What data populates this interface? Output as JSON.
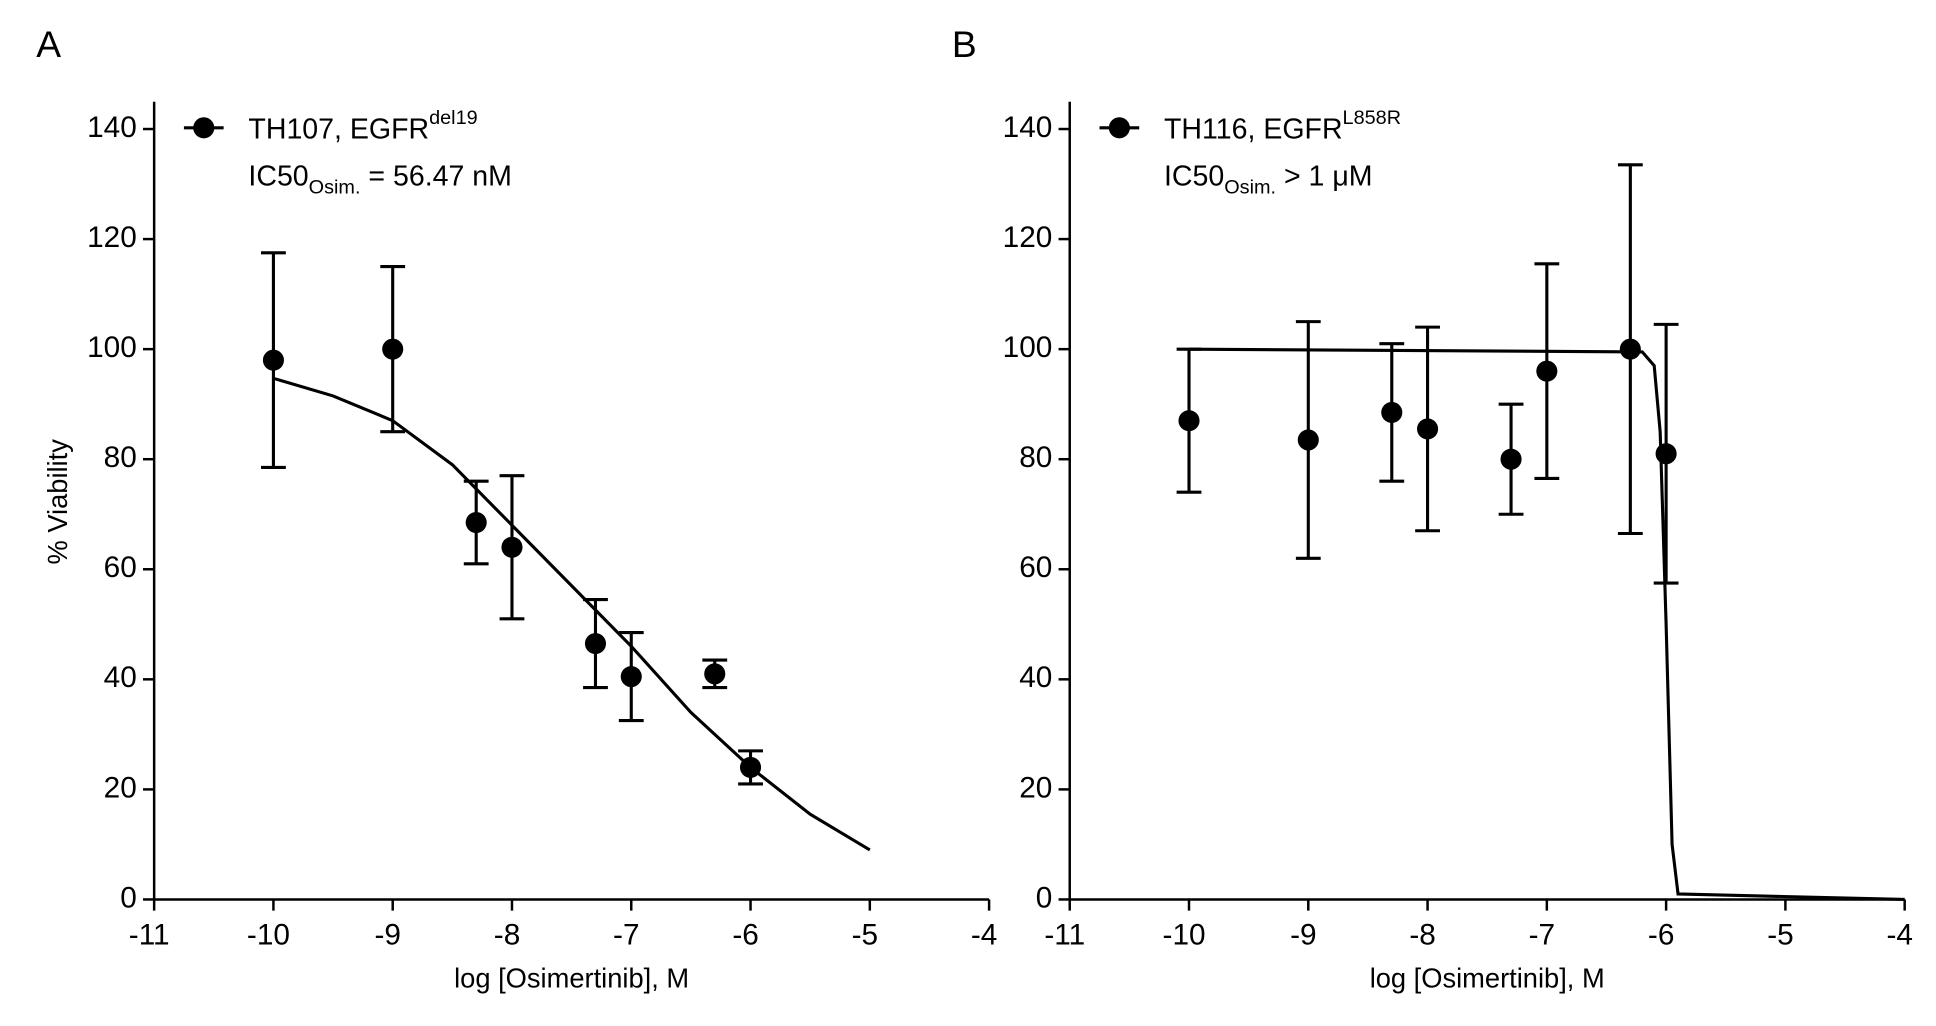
{
  "chart_data": [
    {
      "type": "scatter",
      "panel": "A",
      "xlabel": "log [Osimertinib], M",
      "ylabel": "% Viability",
      "xlim": [
        -11,
        -4
      ],
      "ylim": [
        0,
        140
      ],
      "xticks": [
        -11,
        -10,
        -9,
        -8,
        -7,
        -6,
        -5,
        -4
      ],
      "yticks": [
        0,
        20,
        40,
        60,
        80,
        100,
        120,
        140
      ],
      "series": [
        {
          "name": "TH107, EGFR",
          "name_sup": "del19",
          "color": "#000000",
          "x": [
            -10,
            -9,
            -8.3,
            -8,
            -7.3,
            -7,
            -6.3,
            -6
          ],
          "values": [
            98,
            100,
            68.5,
            64,
            46.5,
            40.5,
            41,
            24
          ],
          "errors": [
            19.5,
            15,
            7.5,
            13,
            8,
            8,
            2.5,
            3
          ]
        }
      ],
      "fit": {
        "x": [
          -10,
          -9.5,
          -9,
          -8.5,
          -8,
          -7.5,
          -7,
          -6.5,
          -6,
          -5.5,
          -5
        ],
        "y": [
          94.7,
          91.5,
          87,
          79,
          68,
          57,
          46,
          34,
          24,
          15.5,
          9
        ]
      },
      "annotation": {
        "main": "IC50",
        "sub": "Osim.",
        "rest": " = 56.47 nM"
      }
    },
    {
      "type": "scatter",
      "panel": "B",
      "xlabel": "log [Osimertinib], M",
      "xlim": [
        -11,
        -4
      ],
      "ylim": [
        0,
        140
      ],
      "xticks": [
        -11,
        -10,
        -9,
        -8,
        -7,
        -6,
        -5,
        -4
      ],
      "yticks": [
        0,
        20,
        40,
        60,
        80,
        100,
        120,
        140
      ],
      "series": [
        {
          "name": "TH116, EGFR",
          "name_sup": "L858R",
          "color": "#000000",
          "x": [
            -10,
            -9,
            -8.3,
            -8,
            -7.3,
            -7,
            -6.3,
            -6
          ],
          "values": [
            87,
            83.5,
            88.5,
            85.5,
            80,
            96,
            100,
            81
          ],
          "errors": [
            13,
            21.5,
            12.5,
            18.5,
            10,
            19.5,
            33.5,
            23.5
          ]
        }
      ],
      "fit": {
        "x": [
          -10,
          -6.2,
          -6.1,
          -6.05,
          -6,
          -5.95,
          -5.9,
          -4
        ],
        "y": [
          100,
          99.5,
          97,
          85,
          50,
          10,
          1,
          0
        ]
      },
      "annotation": {
        "main": "IC50",
        "sub": "Osim.",
        "rest": " > 1 μM"
      }
    }
  ]
}
